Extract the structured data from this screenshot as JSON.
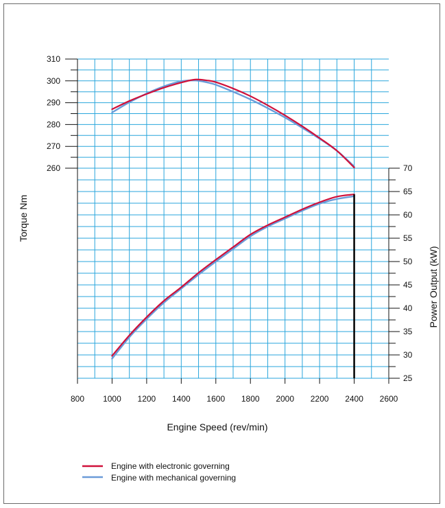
{
  "chart_data": {
    "type": "line",
    "xlabel": "Engine Speed (rev/min)",
    "ylabel_left": "Torque Nm",
    "ylabel_right": "Power Output (kW)",
    "x_ticks": [
      800,
      1000,
      1200,
      1400,
      1600,
      1800,
      2000,
      2200,
      2400,
      2600
    ],
    "xlim": [
      800,
      2600
    ],
    "torque_ticks": [
      260,
      270,
      280,
      290,
      300,
      310
    ],
    "torque_lim": [
      260,
      310
    ],
    "power_ticks": [
      25,
      30,
      35,
      40,
      45,
      50,
      55,
      60,
      65,
      70
    ],
    "power_lim": [
      25,
      70
    ],
    "grid": true,
    "max_speed_marker": 2400,
    "colors": {
      "electronic": "#d0103a",
      "mechanical": "#6a9bd8",
      "grid": "#29a6dc",
      "axis": "#111111"
    },
    "series": [
      {
        "name": "Engine with electronic governing",
        "quantity": "torque",
        "color": "#d0103a",
        "x": [
          1000,
          1100,
          1200,
          1300,
          1400,
          1480,
          1550,
          1600,
          1700,
          1800,
          1900,
          2000,
          2100,
          2200,
          2300,
          2400
        ],
        "values": [
          287,
          290.8,
          294,
          296.9,
          299.2,
          300.6,
          300.2,
          299.4,
          296.5,
          293,
          288.8,
          284.2,
          279.2,
          273.8,
          268,
          260.3
        ]
      },
      {
        "name": "Engine with mechanical governing",
        "quantity": "torque",
        "color": "#6a9bd8",
        "x": [
          1000,
          1100,
          1200,
          1300,
          1400,
          1480,
          1550,
          1600,
          1700,
          1800,
          1900,
          2000,
          2100,
          2200,
          2300,
          2400
        ],
        "values": [
          285.5,
          290.2,
          294.2,
          297.5,
          299.8,
          300.2,
          299.3,
          298.2,
          295,
          291.5,
          287.5,
          283.2,
          278.5,
          273.5,
          268,
          260.8
        ]
      },
      {
        "name": "Engine with electronic governing",
        "quantity": "power",
        "color": "#d0103a",
        "x": [
          1000,
          1100,
          1200,
          1300,
          1400,
          1500,
          1600,
          1700,
          1800,
          1900,
          2000,
          2100,
          2200,
          2300,
          2400
        ],
        "values": [
          29.8,
          34.2,
          38.1,
          41.6,
          44.5,
          47.6,
          50.4,
          53.1,
          55.8,
          57.8,
          59.5,
          61.2,
          62.7,
          63.9,
          64.4
        ]
      },
      {
        "name": "Engine with mechanical governing",
        "quantity": "power",
        "color": "#6a9bd8",
        "x": [
          1000,
          1100,
          1200,
          1300,
          1400,
          1500,
          1600,
          1700,
          1800,
          1900,
          2000,
          2100,
          2200,
          2300,
          2400
        ],
        "values": [
          29.2,
          33.8,
          37.7,
          41.2,
          44.2,
          47.2,
          50,
          52.7,
          55.4,
          57.5,
          59.2,
          60.9,
          62.4,
          63.4,
          64
        ]
      }
    ],
    "legend": [
      {
        "label": "Engine with electronic governing",
        "color": "#d0103a"
      },
      {
        "label": "Engine with mechanical governing",
        "color": "#6a9bd8"
      }
    ]
  }
}
